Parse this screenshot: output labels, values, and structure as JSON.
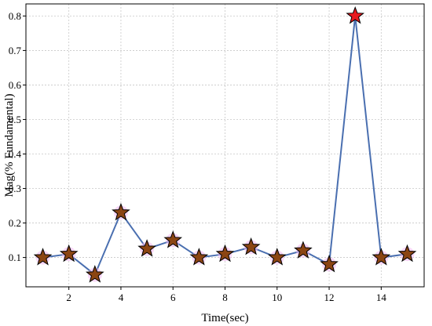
{
  "chart_data": {
    "type": "line",
    "title": "",
    "xlabel": "Time(sec)",
    "ylabel": "Mag(% Fundamental)",
    "xlim": [
      0.35,
      15.65
    ],
    "ylim": [
      0.015,
      0.835
    ],
    "xticks": [
      2,
      4,
      6,
      8,
      10,
      12,
      14
    ],
    "yticks": [
      0.1,
      0.2,
      0.3,
      0.4,
      0.5,
      0.6,
      0.7,
      0.8
    ],
    "xtick_labels": [
      "2",
      "4",
      "6",
      "8",
      "10",
      "12",
      "14"
    ],
    "ytick_labels": [
      "0.1",
      "0.2",
      "0.3",
      "0.4",
      "0.5",
      "0.6",
      "0.7",
      "0.8"
    ],
    "grid": true,
    "series": [
      {
        "x": [
          1,
          2,
          3,
          4,
          5,
          6,
          7,
          8,
          9,
          10,
          11,
          12,
          13,
          14,
          15
        ],
        "y": [
          0.1,
          0.11,
          0.05,
          0.23,
          0.125,
          0.15,
          0.1,
          0.11,
          0.13,
          0.1,
          0.12,
          0.08,
          0.8,
          0.1,
          0.11
        ],
        "line_color": "#4a6fb0",
        "marker": "star",
        "marker_color": "#8b4513",
        "highlight": {
          "index": 12,
          "color": "#e8191e"
        }
      }
    ]
  }
}
